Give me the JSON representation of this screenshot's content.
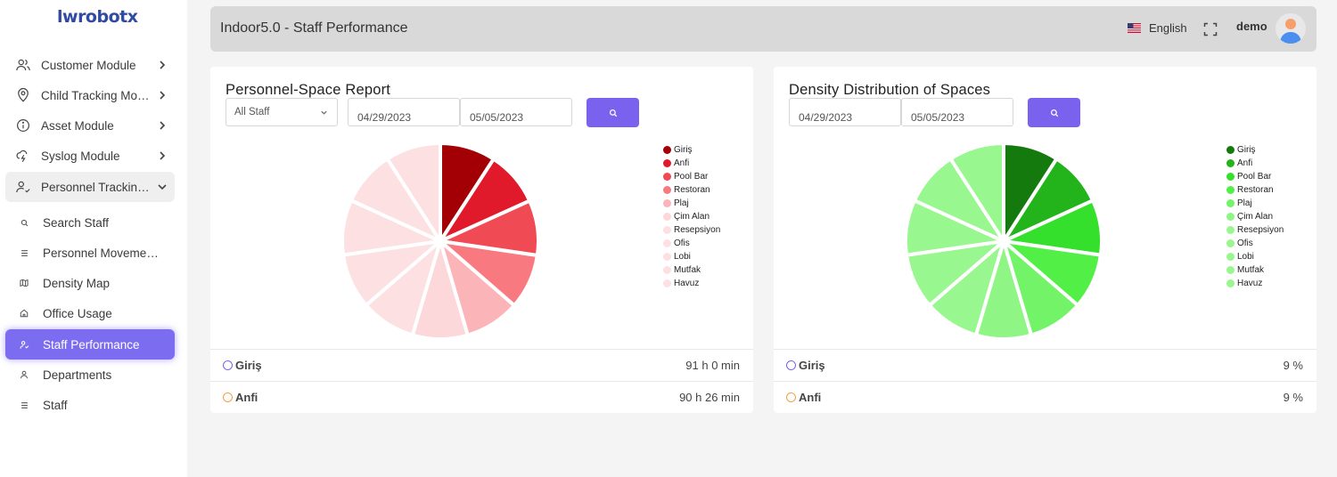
{
  "brand": {
    "logo_text": "lwrobotx"
  },
  "sidebar": {
    "items": [
      {
        "label": "Customer Module",
        "icon": "users-icon"
      },
      {
        "label": "Child Tracking Module",
        "icon": "location-pin-icon"
      },
      {
        "label": "Asset Module",
        "icon": "info-circle-icon"
      },
      {
        "label": "Syslog Module",
        "icon": "bolt-icon"
      },
      {
        "label": "Personnel Tracking Module",
        "icon": "user-check-icon"
      }
    ],
    "subitems": [
      {
        "label": "Search Staff",
        "icon": "search-icon"
      },
      {
        "label": "Personnel Movements",
        "icon": "list-icon"
      },
      {
        "label": "Density Map",
        "icon": "map-icon"
      },
      {
        "label": "Office Usage",
        "icon": "home-icon"
      },
      {
        "label": "Staff Performance",
        "icon": "user-check-icon"
      },
      {
        "label": "Departments",
        "icon": "user-icon"
      },
      {
        "label": "Staff",
        "icon": "list-icon"
      }
    ]
  },
  "header": {
    "title": "Indoor5.0 - Staff Performance",
    "language": "English",
    "user": "demo"
  },
  "colors": {
    "accent": "#7a61ee",
    "active_nav": "#7b6cf0"
  },
  "cards": {
    "personnel": {
      "title": "Personnel-Space Report",
      "staff_select": "All Staff",
      "date_from": "04/29/2023",
      "date_to": "05/05/2023",
      "rows": [
        {
          "name": "Giriş",
          "value": "91 h 0 min"
        },
        {
          "name": "Anfi",
          "value": "90 h 26 min"
        }
      ]
    },
    "density": {
      "title": "Density Distribution of Spaces",
      "date_from": "04/29/2023",
      "date_to": "05/05/2023",
      "rows": [
        {
          "name": "Giriş",
          "value": "9 %"
        },
        {
          "name": "Anfi",
          "value": "9 %"
        }
      ]
    }
  },
  "chart_data": [
    {
      "type": "pie",
      "categories": [
        "Giriş",
        "Anfi",
        "Pool Bar",
        "Restoran",
        "Plaj",
        "Çim Alan",
        "Resepsiyon",
        "Ofis",
        "Lobi",
        "Mutfak",
        "Havuz"
      ],
      "values": [
        91.0,
        90.43,
        90.4,
        90.4,
        90.4,
        90.4,
        90.4,
        90.4,
        90.4,
        90.4,
        90.4
      ],
      "colors": [
        "#a30005",
        "#e01a2b",
        "#f04a55",
        "#f87a80",
        "#fbb4b8",
        "#fdd8da",
        "#fde0e1",
        "#fde0e1",
        "#fde0e1",
        "#fde0e1",
        "#fde0e1"
      ],
      "legend": "right"
    },
    {
      "type": "pie",
      "categories": [
        "Giriş",
        "Anfi",
        "Pool Bar",
        "Restoran",
        "Plaj",
        "Çim Alan",
        "Resepsiyon",
        "Ofis",
        "Lobi",
        "Mutfak",
        "Havuz"
      ],
      "values": [
        9,
        9,
        9,
        9,
        9,
        9,
        9,
        9,
        9,
        9,
        9
      ],
      "colors": [
        "#157a0d",
        "#23b31a",
        "#34e02b",
        "#52ef47",
        "#72f368",
        "#8ff585",
        "#98f78e",
        "#98f78e",
        "#98f78e",
        "#98f78e",
        "#98f78e"
      ],
      "legend": "right"
    }
  ]
}
